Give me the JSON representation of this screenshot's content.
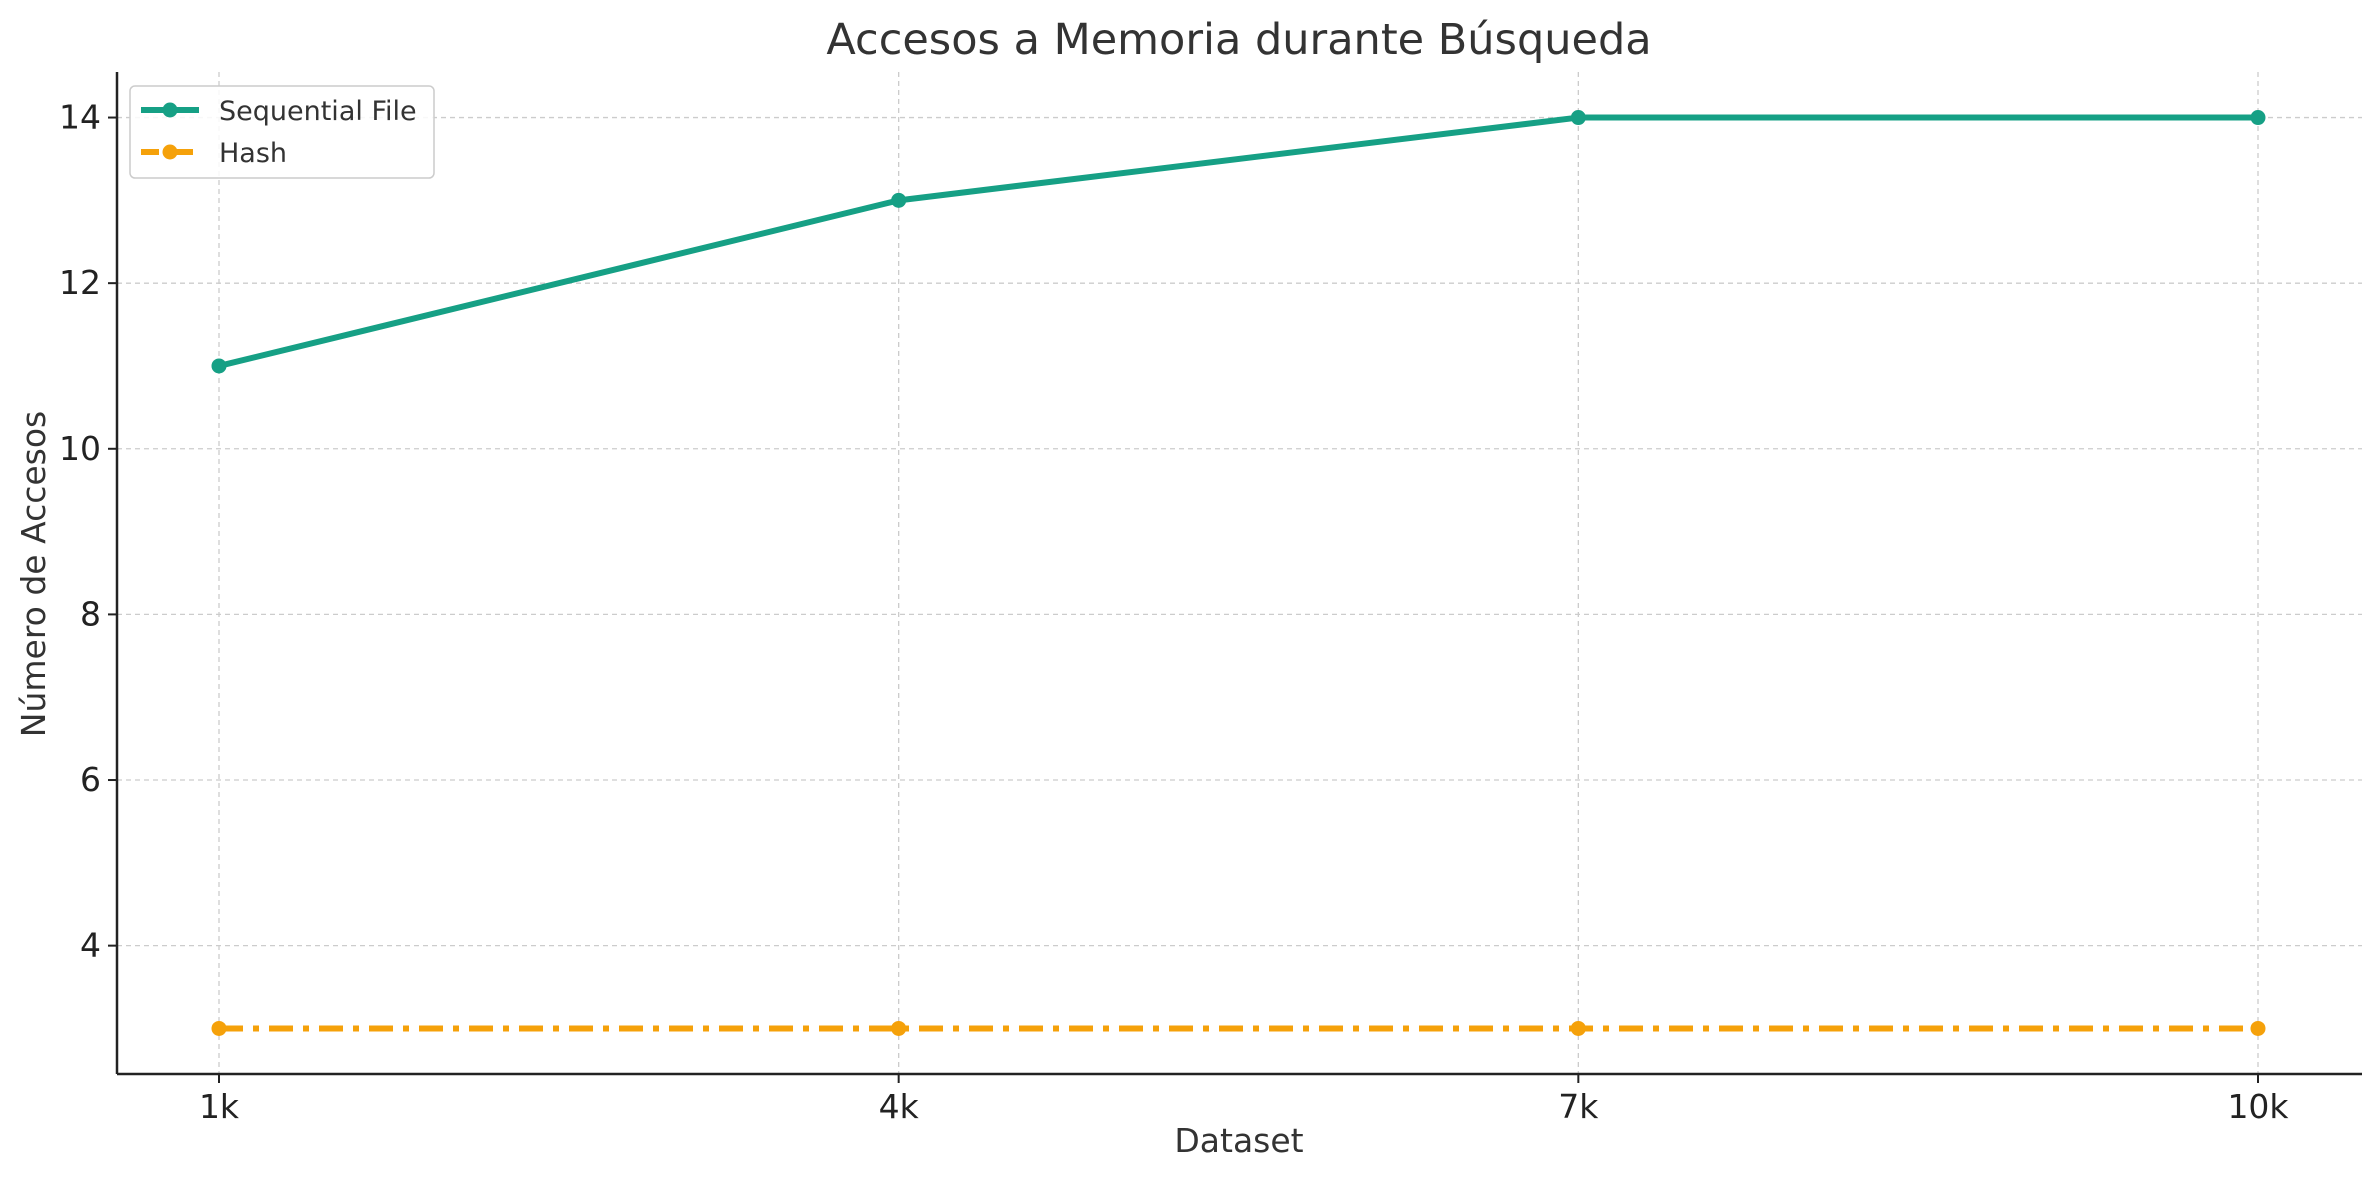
{
  "chart_data": {
    "type": "line",
    "title": "Accesos a Memoria durante Búsqueda",
    "xlabel": "Dataset",
    "ylabel": "Número de Accesos",
    "categories": [
      "1k",
      "4k",
      "7k",
      "10k"
    ],
    "yticks": [
      4,
      6,
      8,
      10,
      12,
      14
    ],
    "ylim": [
      2.45,
      14.55
    ],
    "grid": true,
    "legend_position": "upper-left",
    "series": [
      {
        "name": "Sequential File",
        "values": [
          11,
          13,
          14,
          14
        ],
        "color": "#16a085",
        "line_style": "solid",
        "marker": "circle"
      },
      {
        "name": "Hash",
        "values": [
          3,
          3,
          3,
          3
        ],
        "color": "#f5a10a",
        "line_style": "dash-dot",
        "marker": "circle"
      }
    ]
  }
}
